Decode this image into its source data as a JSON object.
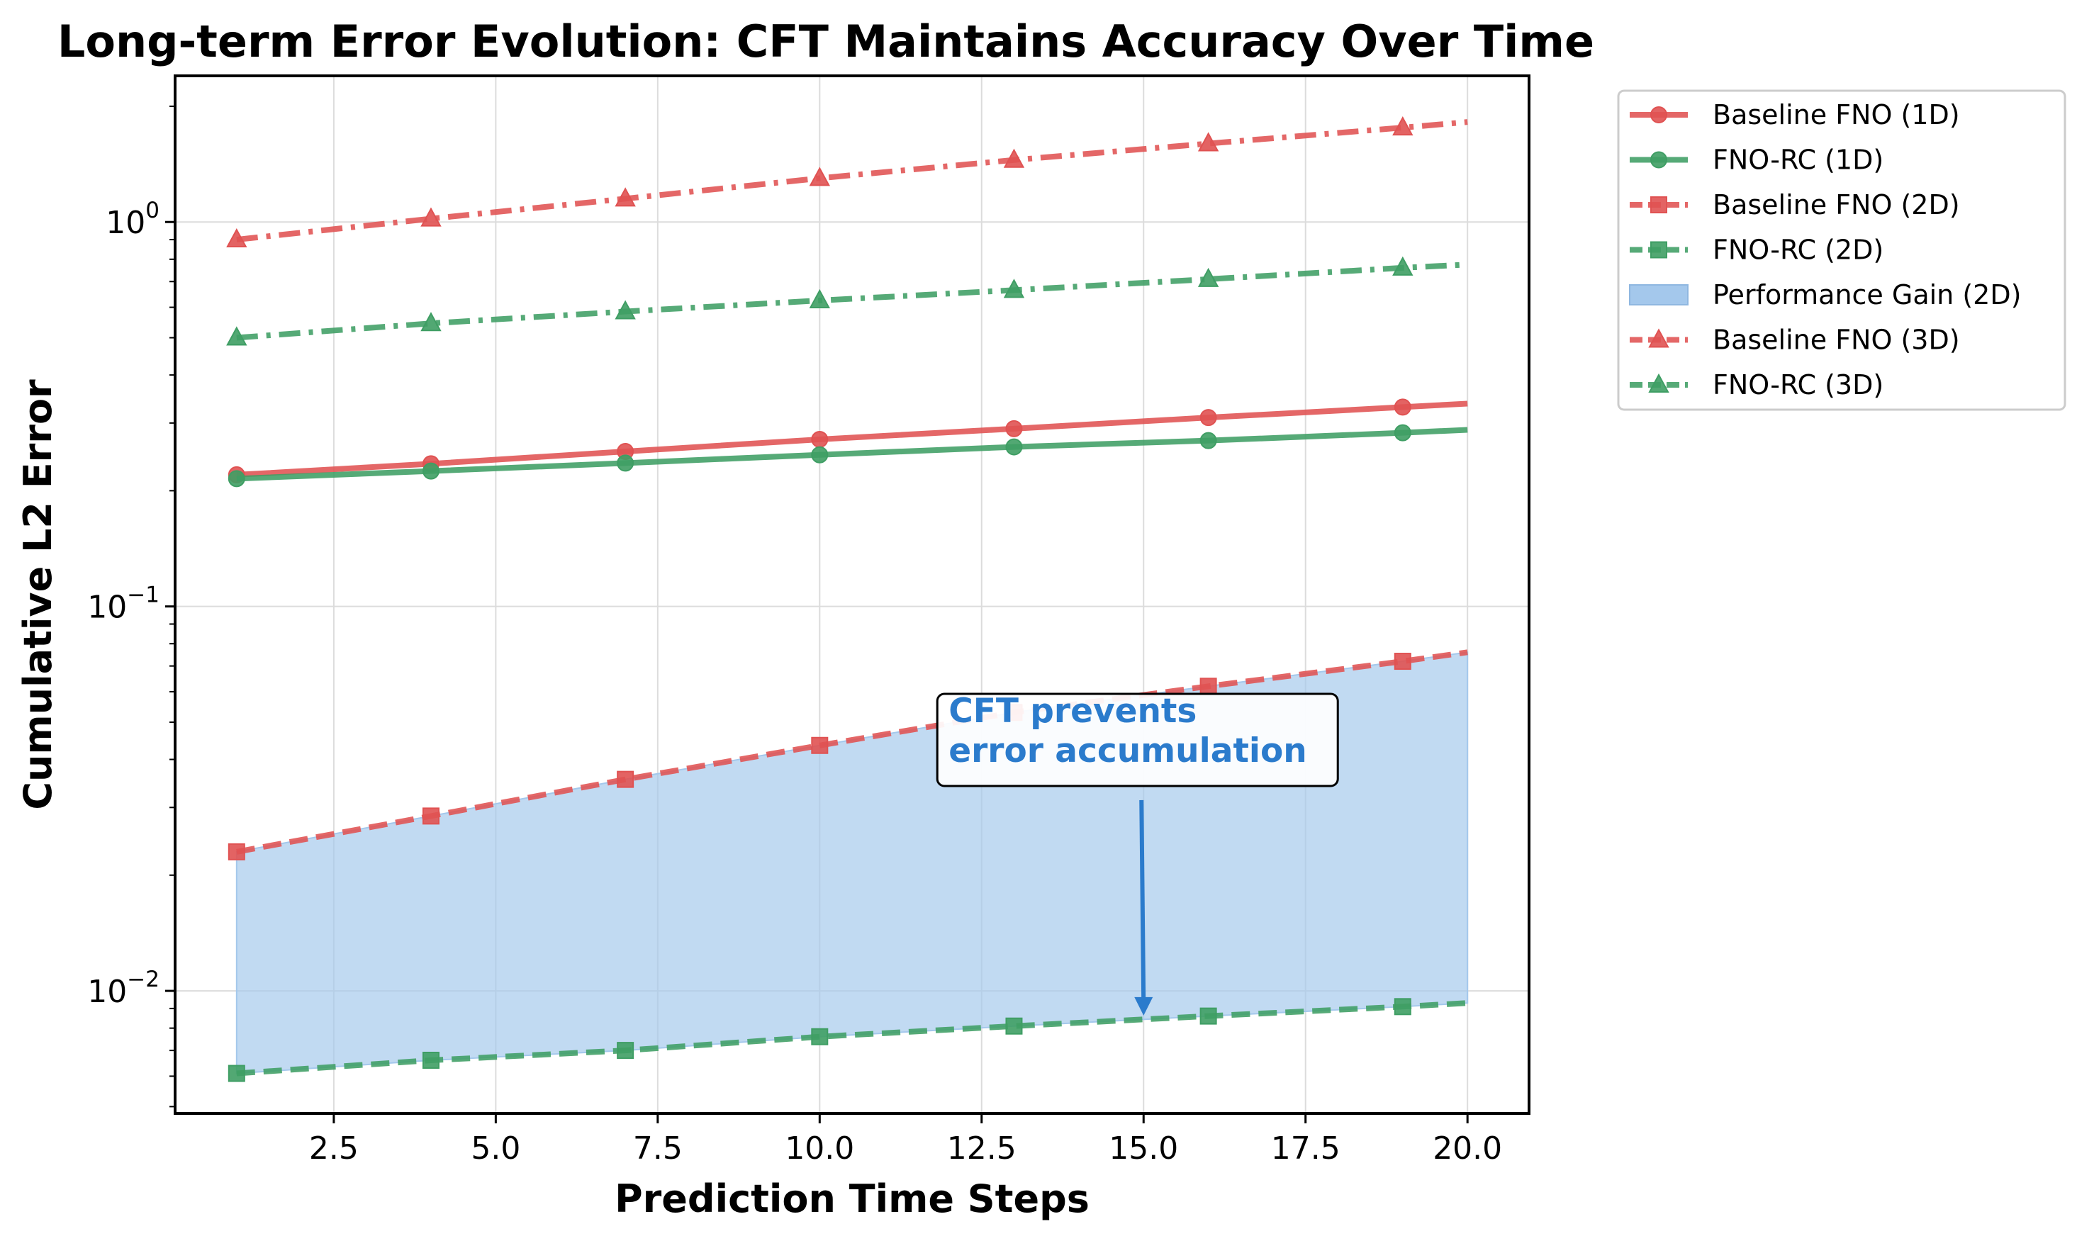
{
  "chart_data": {
    "type": "line",
    "title": "Long-term Error Evolution: CFT Maintains Accuracy Over Time",
    "xlabel": "Prediction Time Steps",
    "ylabel": "Cumulative L2 Error",
    "xlim": [
      0.05,
      20.95
    ],
    "ylim": [
      0.0048,
      2.4
    ],
    "yscale": "log",
    "grid": true,
    "legend_position": "outside-top-right",
    "x": [
      1,
      4,
      7,
      10,
      13,
      16,
      19
    ],
    "x_end": 20,
    "x_ticks": [
      {
        "value": 2.5,
        "label": "2.5"
      },
      {
        "value": 5.0,
        "label": "5.0"
      },
      {
        "value": 7.5,
        "label": "7.5"
      },
      {
        "value": 10.0,
        "label": "10.0"
      },
      {
        "value": 12.5,
        "label": "12.5"
      },
      {
        "value": 15.0,
        "label": "15.0"
      },
      {
        "value": 17.5,
        "label": "17.5"
      },
      {
        "value": 20.0,
        "label": "20.0"
      }
    ],
    "y_ticks": [
      {
        "value": 0.01,
        "base": "10",
        "exp": "−2"
      },
      {
        "value": 0.1,
        "base": "10",
        "exp": "−1"
      },
      {
        "value": 1,
        "base": "10",
        "exp": "0"
      }
    ],
    "colors": {
      "baseline": "#e05252",
      "fno_rc": "#3f9e64",
      "gain": "#a4c8ec",
      "annotation": "#2b7bcc"
    },
    "series": [
      {
        "name": "Baseline FNO (1D)",
        "color": "#e05252",
        "dash": "solid",
        "marker": "circle",
        "values": [
          0.22,
          0.235,
          0.253,
          0.272,
          0.29,
          0.31,
          0.33
        ],
        "end_value": 0.337
      },
      {
        "name": "FNO-RC (1D)",
        "color": "#3f9e64",
        "dash": "solid",
        "marker": "circle",
        "values": [
          0.215,
          0.225,
          0.236,
          0.248,
          0.26,
          0.27,
          0.283
        ],
        "end_value": 0.288
      },
      {
        "name": "Baseline FNO (2D)",
        "color": "#e05252",
        "dash": "dashed",
        "marker": "square",
        "values": [
          0.023,
          0.0285,
          0.0355,
          0.0435,
          0.053,
          0.062,
          0.072
        ],
        "end_value": 0.076
      },
      {
        "name": "FNO-RC (2D)",
        "color": "#3f9e64",
        "dash": "dashed",
        "marker": "square",
        "values": [
          0.0061,
          0.0066,
          0.007,
          0.0076,
          0.0081,
          0.0086,
          0.0091
        ],
        "end_value": 0.0093
      },
      {
        "name": "Baseline FNO (3D)",
        "color": "#e05252",
        "dash": "dashdot",
        "marker": "triangle",
        "values": [
          0.9,
          1.02,
          1.15,
          1.3,
          1.45,
          1.6,
          1.76
        ],
        "end_value": 1.82
      },
      {
        "name": "FNO-RC (3D)",
        "color": "#3f9e64",
        "dash": "dashdot",
        "marker": "triangle",
        "values": [
          0.5,
          0.545,
          0.585,
          0.625,
          0.665,
          0.71,
          0.76
        ],
        "end_value": 0.775
      }
    ],
    "fill_between": {
      "name": "Performance Gain (2D)",
      "upper": "Baseline FNO (2D)",
      "lower": "FNO-RC (2D)"
    },
    "legend": [
      {
        "label": "Baseline FNO (1D)",
        "kind": "line",
        "series": 0
      },
      {
        "label": "FNO-RC (1D)",
        "kind": "line",
        "series": 1
      },
      {
        "label": "Baseline FNO (2D)",
        "kind": "line",
        "series": 2
      },
      {
        "label": "FNO-RC (2D)",
        "kind": "line",
        "series": 3
      },
      {
        "label": "Performance Gain (2D)",
        "kind": "patch"
      },
      {
        "label": "Baseline FNO (3D)",
        "kind": "line",
        "series": 4
      },
      {
        "label": "FNO-RC (3D)",
        "kind": "line",
        "series": 5
      }
    ],
    "annotation": {
      "lines": [
        "CFT prevents",
        "error accumulation"
      ],
      "text_x": 12.1,
      "text_y": 0.05,
      "arrow_to_x": 15.0,
      "arrow_to_y": 0.0087
    }
  }
}
